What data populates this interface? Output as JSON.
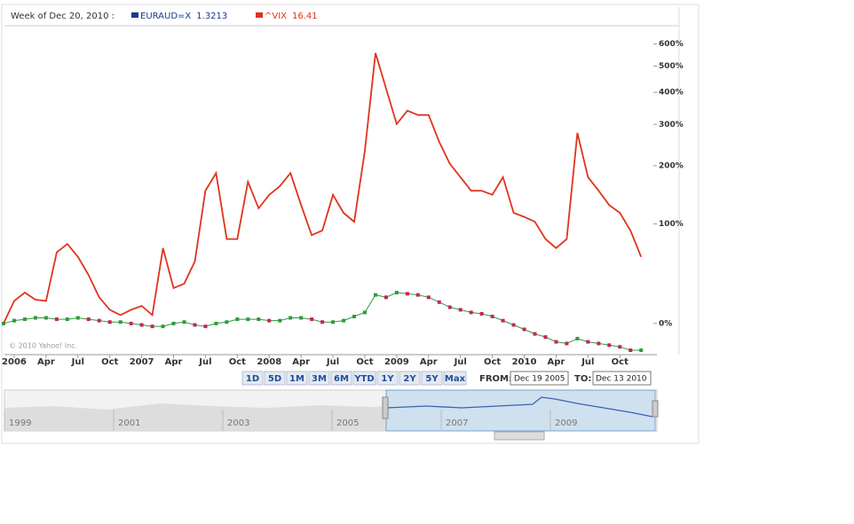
{
  "header": "Week of Dec 20, 2010 :",
  "copyright": "© 2010 Yahoo! Inc.",
  "chart_data": {
    "type": "line",
    "log_scale": true,
    "grid": false,
    "x": [
      "2005-12",
      "2006-01",
      "2006-02",
      "2006-03",
      "2006-04",
      "2006-05",
      "2006-06",
      "2006-07",
      "2006-08",
      "2006-09",
      "2006-10",
      "2006-11",
      "2006-12",
      "2007-01",
      "2007-02",
      "2007-03",
      "2007-04",
      "2007-05",
      "2007-06",
      "2007-07",
      "2007-08",
      "2007-09",
      "2007-10",
      "2007-11",
      "2007-12",
      "2008-01",
      "2008-02",
      "2008-03",
      "2008-04",
      "2008-05",
      "2008-06",
      "2008-07",
      "2008-08",
      "2008-09",
      "2008-10",
      "2008-11",
      "2008-12",
      "2009-01",
      "2009-02",
      "2009-03",
      "2009-04",
      "2009-05",
      "2009-06",
      "2009-07",
      "2009-08",
      "2009-09",
      "2009-10",
      "2009-11",
      "2009-12",
      "2010-01",
      "2010-02",
      "2010-03",
      "2010-04",
      "2010-05",
      "2010-06",
      "2010-07",
      "2010-08",
      "2010-09",
      "2010-10",
      "2010-11",
      "2010-12"
    ],
    "series": [
      {
        "name": "EURAUD=X",
        "quote": 1.3213,
        "color": "#1a3a8c",
        "marker_color": "#2e9b3e",
        "values": [
          0,
          2,
          3,
          4,
          4,
          3,
          3,
          4,
          3,
          2,
          1,
          1,
          0,
          -1,
          -2,
          -2,
          0,
          1,
          -1,
          -2,
          0,
          1,
          3,
          3,
          3,
          2,
          2,
          4,
          4,
          3,
          1,
          1,
          2,
          5,
          8,
          22,
          20,
          24,
          23,
          22,
          20,
          16,
          12,
          10,
          8,
          7,
          5,
          2,
          -1,
          -4,
          -7,
          -9,
          -12,
          -13,
          -10,
          -12,
          -13,
          -14,
          -15,
          -17,
          -17
        ]
      },
      {
        "name": "^VIX",
        "quote": 16.41,
        "color": "#e0331b",
        "values": [
          0,
          17,
          24,
          18,
          17,
          64,
          74,
          59,
          40,
          20,
          10,
          6,
          10,
          13,
          6,
          69,
          28,
          32,
          54,
          152,
          185,
          80,
          80,
          168,
          123,
          145,
          160,
          185,
          128,
          85,
          91,
          145,
          116,
          103,
          233,
          557,
          413,
          301,
          340,
          327,
          327,
          254,
          204,
          177,
          152,
          152,
          145,
          177,
          116,
          110,
          103,
          80,
          69,
          80,
          277,
          177,
          152,
          128,
          116,
          91,
          59
        ]
      }
    ],
    "ylim": [
      -18,
      690
    ],
    "yticks": [
      {
        "value": 0,
        "label": "0%"
      },
      {
        "value": 100,
        "label": "100%"
      },
      {
        "value": 200,
        "label": "200%"
      },
      {
        "value": 300,
        "label": "300%"
      },
      {
        "value": 400,
        "label": "400%"
      },
      {
        "value": 500,
        "label": "500%"
      },
      {
        "value": 600,
        "label": "600%"
      }
    ],
    "xticks": [
      {
        "value": "2006-01",
        "label": "2006"
      },
      {
        "value": "2006-04",
        "label": "Apr"
      },
      {
        "value": "2006-07",
        "label": "Jul"
      },
      {
        "value": "2006-10",
        "label": "Oct"
      },
      {
        "value": "2007-01",
        "label": "2007"
      },
      {
        "value": "2007-04",
        "label": "Apr"
      },
      {
        "value": "2007-07",
        "label": "Jul"
      },
      {
        "value": "2007-10",
        "label": "Oct"
      },
      {
        "value": "2008-01",
        "label": "2008"
      },
      {
        "value": "2008-04",
        "label": "Apr"
      },
      {
        "value": "2008-07",
        "label": "Jul"
      },
      {
        "value": "2008-10",
        "label": "Oct"
      },
      {
        "value": "2009-01",
        "label": "2009"
      },
      {
        "value": "2009-04",
        "label": "Apr"
      },
      {
        "value": "2009-07",
        "label": "Jul"
      },
      {
        "value": "2009-10",
        "label": "Oct"
      },
      {
        "value": "2010-01",
        "label": "2010"
      },
      {
        "value": "2010-04",
        "label": "Apr"
      },
      {
        "value": "2010-07",
        "label": "Jul"
      },
      {
        "value": "2010-10",
        "label": "Oct"
      }
    ]
  },
  "controls": {
    "ranges": [
      "1D",
      "5D",
      "1M",
      "3M",
      "6M",
      "YTD",
      "1Y",
      "2Y",
      "5Y",
      "Max"
    ],
    "from_label": "FROM:",
    "from": "Dec 19 2005",
    "to_label": "TO:",
    "to": "Dec 13 2010"
  },
  "navigator": {
    "years": [
      "1999",
      "2001",
      "2003",
      "2005",
      "2007",
      "2009"
    ]
  }
}
